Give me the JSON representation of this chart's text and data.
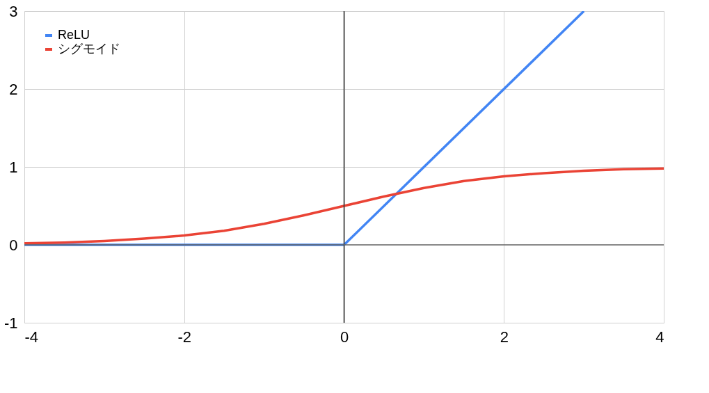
{
  "chart_data": {
    "type": "line",
    "xlim": [
      -4,
      4
    ],
    "xticks": [
      -4,
      -2,
      0,
      2,
      4
    ],
    "ylim": [
      -1,
      3
    ],
    "yticks": [
      -1,
      0,
      1,
      2,
      3
    ],
    "grid": true,
    "legend": "top left",
    "marker": "none",
    "line_style": "solid",
    "ref_lines": [
      {
        "axis": "x",
        "value": 0,
        "color": "#333333"
      },
      {
        "axis": "y",
        "value": 0,
        "color": "#666666"
      }
    ],
    "series": [
      {
        "name": "ReLU",
        "color": "#4285f4",
        "x": [
          -4,
          0,
          3
        ],
        "values": [
          0,
          0,
          3
        ]
      },
      {
        "name": "シグモイド",
        "color": "#ea4335",
        "x": [
          -4,
          -3.5,
          -3,
          -2.5,
          -2,
          -1.5,
          -1,
          -0.5,
          0,
          0.5,
          1,
          1.5,
          2,
          2.5,
          3,
          3.5,
          4
        ],
        "values": [
          0.02,
          0.03,
          0.05,
          0.08,
          0.12,
          0.18,
          0.27,
          0.38,
          0.5,
          0.62,
          0.73,
          0.82,
          0.88,
          0.92,
          0.95,
          0.97,
          0.98
        ]
      }
    ]
  }
}
